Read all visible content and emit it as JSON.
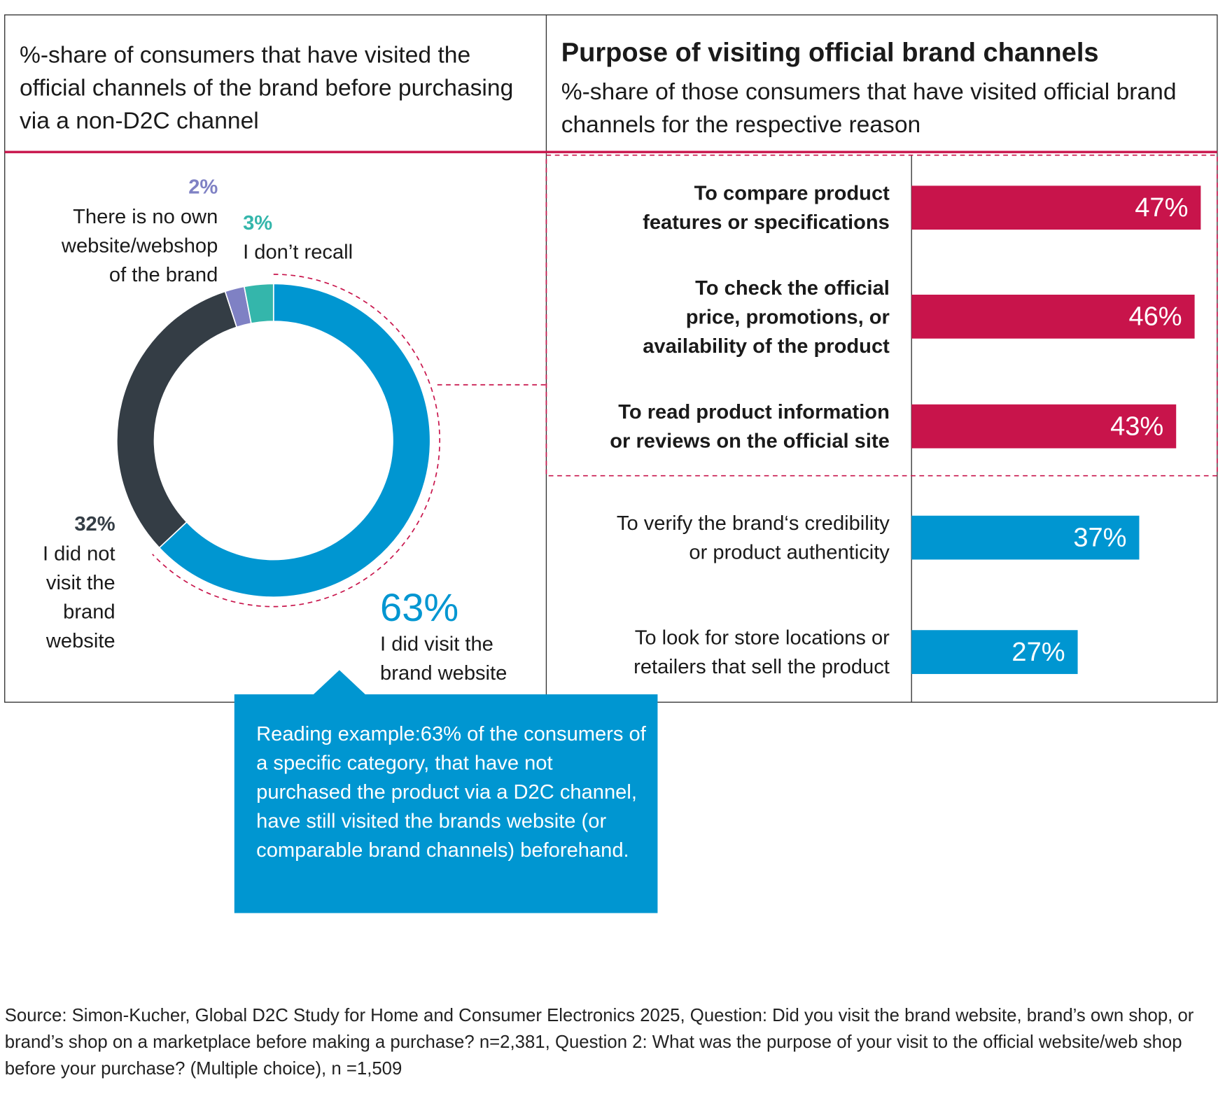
{
  "chart_data": [
    {
      "type": "pie",
      "title": "%-share of consumers that have visited the official channels of the brand before purchasing via a non-D2C channel",
      "categories": [
        "I did visit the brand website",
        "I did not visit the brand website",
        "There is no own website/webshop of the brand",
        "I don’t recall"
      ],
      "values": [
        63,
        32,
        2,
        3
      ],
      "value_labels": [
        "63%",
        "32%",
        "2%",
        "3%"
      ],
      "colors": [
        "#0096d1",
        "#343d45",
        "#7f81c4",
        "#34b6ab"
      ],
      "annotation": "Reading example:63% of the consumers of a specific category, that have not purchased the product via a D2C channel, have still visited the brands website (or comparable brand channels) beforehand."
    },
    {
      "type": "hbar",
      "title": "Purpose of visiting official brand channels",
      "subtitle": "%-share of those consumers that have visited official brand channels for the respective reason",
      "categories": [
        "To compare product features or specifications",
        "To check the official price, promotions, or availability of the product",
        "To read product information or reviews on the official site",
        "To verify the brand‘s credibility or product authenticity",
        "To look for store locations or retailers that sell the product"
      ],
      "values": [
        47,
        46,
        43,
        37,
        27
      ],
      "value_labels": [
        "47%",
        "46%",
        "43%",
        "37%",
        "27%"
      ],
      "colors": [
        "#c8144b",
        "#c8144b",
        "#c8144b",
        "#0096d1",
        "#0096d1"
      ],
      "highlighted": [
        true,
        true,
        true,
        false,
        false
      ]
    }
  ],
  "source": "Source: Simon-Kucher, Global D2C Study for Home and Consumer Electronics 2025, Question: Did you visit the brand website, brand’s own shop, or brand’s shop on a marketplace before making a purchase? n=2,381, Question 2: What was the purpose of your visit to the official website/web shop before your purchase? (Multiple choice), n =1,509"
}
